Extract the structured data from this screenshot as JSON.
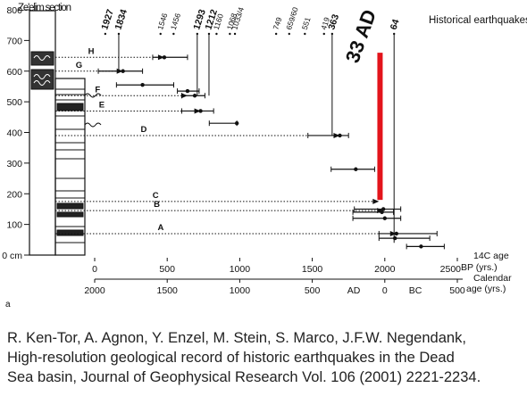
{
  "chart_data": {
    "type": "depth-age",
    "column_title": "Ze'elim section",
    "events_title": "Historical earthquakes",
    "panel_label": "a",
    "ylim": [
      0,
      800
    ],
    "yticks": [
      {
        "value": 0,
        "label": "0 cm"
      },
      100,
      200,
      300,
      400,
      500,
      600,
      700,
      800
    ],
    "xlim": [
      0,
      2500
    ],
    "xticks": [
      0,
      500,
      1000,
      1500,
      2000,
      2500
    ],
    "x_label": [
      "14C age",
      "BP (yrs.)"
    ],
    "x2lim": [
      2000,
      -500
    ],
    "x2ticks": [
      2000,
      1500,
      1000,
      500,
      0,
      {
        "value": -500,
        "label": "500"
      }
    ],
    "x2_label": [
      "Calendar",
      "age (yrs.)"
    ],
    "era_labels": [
      "AD",
      "BC"
    ],
    "events": [
      {
        "label": "1927",
        "year": 1927,
        "bold": true
      },
      {
        "label": "1834",
        "year": 1834,
        "bold": true,
        "line_to": 600
      },
      {
        "label": "1546",
        "year": 1546
      },
      {
        "label": "1456",
        "year": 1456
      },
      {
        "label": "1293",
        "year": 1293,
        "bold": true,
        "line_to": 520
      },
      {
        "label": "1212",
        "year": 1212,
        "bold": true,
        "line_to": 520
      },
      {
        "label": "1160",
        "year": 1160
      },
      {
        "label": "1068",
        "year": 1068
      },
      {
        "label": "1033/4",
        "year": 1033
      },
      {
        "label": "749",
        "year": 749
      },
      {
        "label": "659/60",
        "year": 659
      },
      {
        "label": "551",
        "year": 551
      },
      {
        "label": "419",
        "year": 419
      },
      {
        "label": "363",
        "year": 363,
        "bold": true,
        "line_to": 390
      },
      {
        "label": "64",
        "year": -64,
        "bold": true,
        "line_to": 40
      }
    ],
    "highlight": {
      "label": "33 AD",
      "year": 33,
      "depth_range": [
        180,
        660
      ],
      "color": "#e3141b"
    },
    "layers": [
      {
        "label": "H",
        "depth": 645,
        "to": 480
      },
      {
        "label": "G",
        "depth": 600,
        "to": 195
      },
      {
        "label": "F",
        "depth": 520,
        "to": 640
      },
      {
        "label": "E",
        "depth": 470,
        "to": 730
      },
      {
        "label": "D",
        "depth": 390,
        "to": 1690
      },
      {
        "label": "C",
        "depth": 175,
        "to": 1960
      },
      {
        "label": "B",
        "depth": 145,
        "to": 1990
      },
      {
        "label": "A",
        "depth": 70,
        "to": 2080
      }
    ],
    "samples": [
      {
        "depth": 645,
        "age": 480,
        "min": 400,
        "max": 640
      },
      {
        "depth": 600,
        "age": 195,
        "min": 25,
        "max": 330
      },
      {
        "depth": 555,
        "age": 330,
        "min": 150,
        "max": 545
      },
      {
        "depth": 535,
        "age": 640,
        "min": 570,
        "max": 720
      },
      {
        "depth": 520,
        "age": 690,
        "min": 600,
        "max": 760
      },
      {
        "depth": 470,
        "age": 730,
        "min": 600,
        "max": 820
      },
      {
        "depth": 430,
        "age": 980,
        "min": 790,
        "max": 980
      },
      {
        "depth": 390,
        "age": 1690,
        "min": 1470,
        "max": 1750
      },
      {
        "depth": 280,
        "age": 1800,
        "min": 1630,
        "max": 1930
      },
      {
        "depth": 150,
        "age": 1990,
        "min": 1790,
        "max": 2110
      },
      {
        "depth": 140,
        "age": 1980,
        "min": 1780,
        "max": 2060
      },
      {
        "depth": 120,
        "age": 2000,
        "min": 1780,
        "max": 2110
      },
      {
        "depth": 70,
        "age": 2080,
        "min": 1960,
        "max": 2360
      },
      {
        "depth": 55,
        "age": 2070,
        "min": 1960,
        "max": 2310
      },
      {
        "depth": 28,
        "age": 2250,
        "min": 2150,
        "max": 2410
      }
    ]
  },
  "caption": [
    "R. Ken-Tor, A. Agnon, Y. Enzel, M. Stein, S. Marco, J.F.W. Negendank,",
    "High-resolution geological record of historic earthquakes in the Dead",
    "Sea basin, Journal of Geophysical Research Vol. 106 (2001) 2221-2234."
  ]
}
